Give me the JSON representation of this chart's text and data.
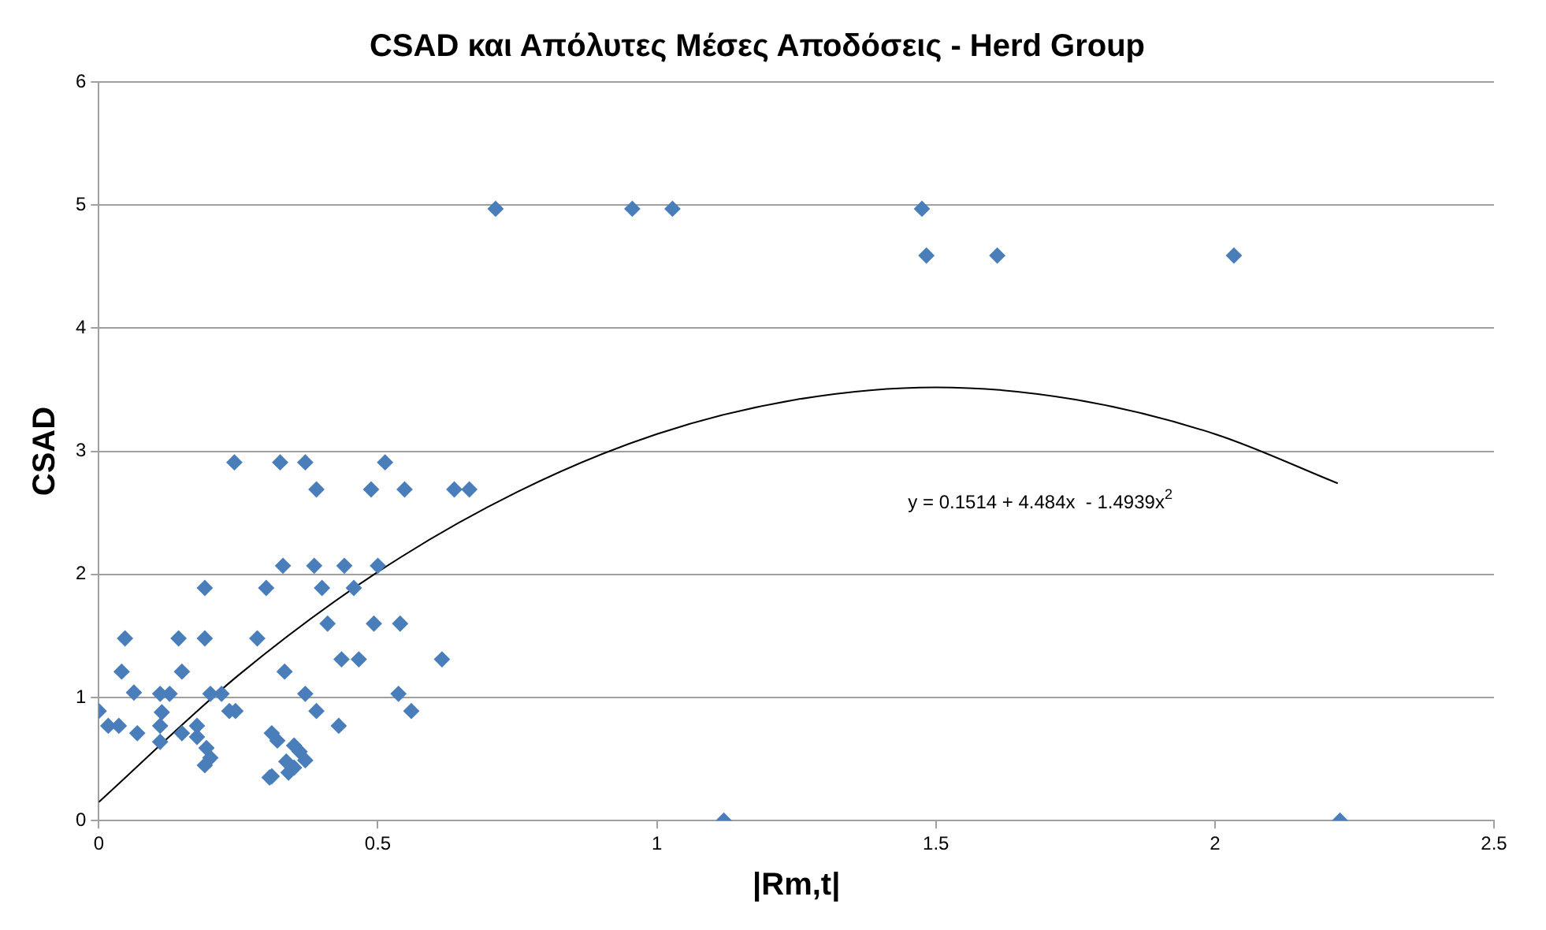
{
  "chart_data": {
    "type": "scatter",
    "title": "CSAD και Απόλυτες Μέσες Αποδόσεις - Herd Group",
    "xlabel": "|Rm,t|",
    "ylabel": "CSAD",
    "xlim": [
      0,
      2.5
    ],
    "xticks": [
      0,
      0.5,
      1,
      1.5,
      2,
      2.5
    ],
    "ylim": [
      0,
      6
    ],
    "yticks": [
      0,
      1,
      2,
      3,
      4,
      5,
      6
    ],
    "grid": "y",
    "marker": "diamond",
    "series": [
      {
        "color": "#4a7ebb",
        "x": [
          0,
          0.047,
          0.041,
          0.017,
          0.036,
          0.063,
          0.069,
          0.11,
          0.127,
          0.113,
          0.11,
          0.11,
          0.143,
          0.149,
          0.149,
          0.19,
          0.19,
          0.176,
          0.176,
          0.193,
          0.2,
          0.19,
          0.2,
          0.22,
          0.234,
          0.245,
          0.243,
          0.284,
          0.3,
          0.306,
          0.31,
          0.31,
          0.32,
          0.325,
          0.33,
          0.333,
          0.336,
          0.35,
          0.34,
          0.35,
          0.36,
          0.37,
          0.37,
          0.37,
          0.386,
          0.39,
          0.39,
          0.4,
          0.41,
          0.43,
          0.435,
          0.44,
          0.457,
          0.466,
          0.488,
          0.493,
          0.5,
          0.513,
          0.537,
          0.54,
          0.548,
          0.56,
          0.615,
          0.637,
          0.664,
          0.711,
          0.956,
          1.028,
          1.12,
          1.475,
          1.483,
          1.61,
          2.034,
          2.224
        ],
        "values": [
          0.89,
          1.48,
          1.21,
          0.77,
          0.77,
          1.04,
          0.71,
          1.03,
          1.03,
          0.88,
          0.77,
          0.64,
          1.48,
          1.21,
          0.71,
          1.89,
          1.48,
          0.77,
          0.68,
          0.59,
          0.51,
          0.45,
          1.03,
          1.03,
          0.89,
          0.89,
          2.91,
          1.48,
          1.89,
          0.35,
          0.36,
          0.71,
          0.65,
          2.91,
          2.07,
          1.21,
          0.48,
          0.43,
          0.39,
          0.61,
          0.56,
          0.49,
          2.91,
          1.03,
          2.07,
          2.69,
          0.89,
          1.89,
          1.6,
          0.77,
          1.31,
          2.07,
          1.89,
          1.31,
          2.69,
          1.6,
          2.07,
          2.91,
          1.03,
          1.6,
          2.69,
          0.89,
          1.31,
          2.69,
          2.69,
          4.97,
          4.97,
          4.97,
          0,
          4.97,
          4.59,
          4.59,
          4.59,
          0
        ]
      },
      {
        "type": "line",
        "color": "#000000",
        "marker": "none",
        "x": [
          0,
          0.25,
          0.5,
          0.75,
          1,
          1.25,
          1.5,
          1.75,
          2,
          2.22
        ],
        "values": [
          0.15,
          1.18,
          2.02,
          2.67,
          3.14,
          3.42,
          3.52,
          3.42,
          3.14,
          2.74
        ]
      }
    ],
    "annotations": [
      "y = 0.1514 + 4.484x  - 1.4939x$^{2}$"
    ],
    "legend": false
  }
}
